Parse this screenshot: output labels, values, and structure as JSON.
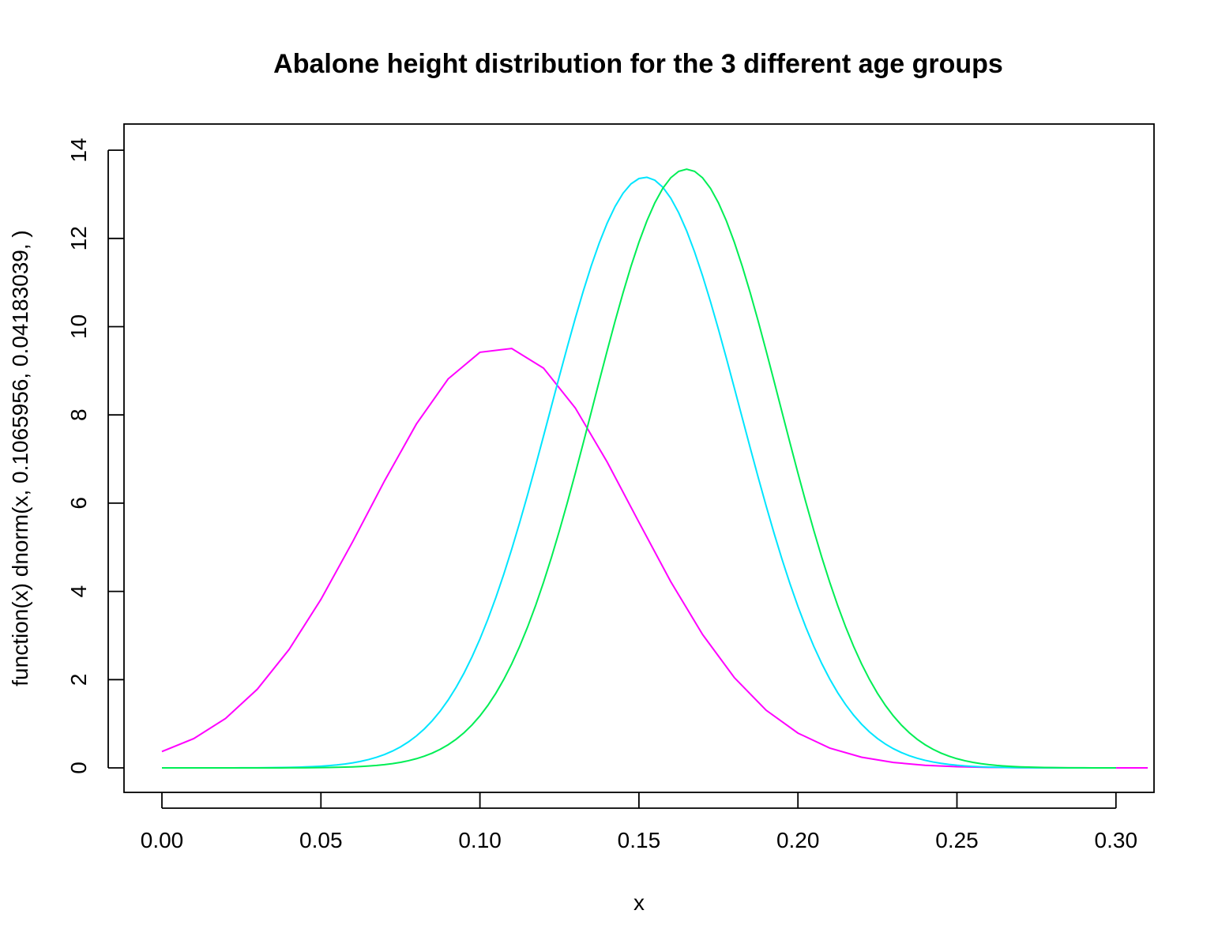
{
  "chart_data": {
    "type": "line",
    "title": "Abalone height distribution for the 3 different age groups",
    "xlabel": "x",
    "ylabel": "function(x) dnorm(x, 0.1065956, 0.04183039, )",
    "xlim": [
      0,
      0.31
    ],
    "ylim": [
      0,
      14
    ],
    "x_ticks": [
      "0.00",
      "0.05",
      "0.10",
      "0.15",
      "0.20",
      "0.25",
      "0.30"
    ],
    "y_ticks": [
      "0",
      "2",
      "4",
      "6",
      "8",
      "10",
      "12",
      "14"
    ],
    "grid": false,
    "legend": "none",
    "series": [
      {
        "color": "#ff00ff",
        "dist": "normal",
        "mean": 0.1065956,
        "sd": 0.04183039,
        "x_range": [
          0,
          0.31
        ],
        "step": 0.01
      },
      {
        "color": "#00e5ff",
        "dist": "normal",
        "mean": 0.152,
        "sd": 0.0298,
        "x_range": [
          0,
          0.3
        ],
        "step": 0.0025
      },
      {
        "color": "#00ee55",
        "dist": "normal",
        "mean": 0.165,
        "sd": 0.0294,
        "x_range": [
          0,
          0.3
        ],
        "step": 0.0025
      }
    ]
  }
}
